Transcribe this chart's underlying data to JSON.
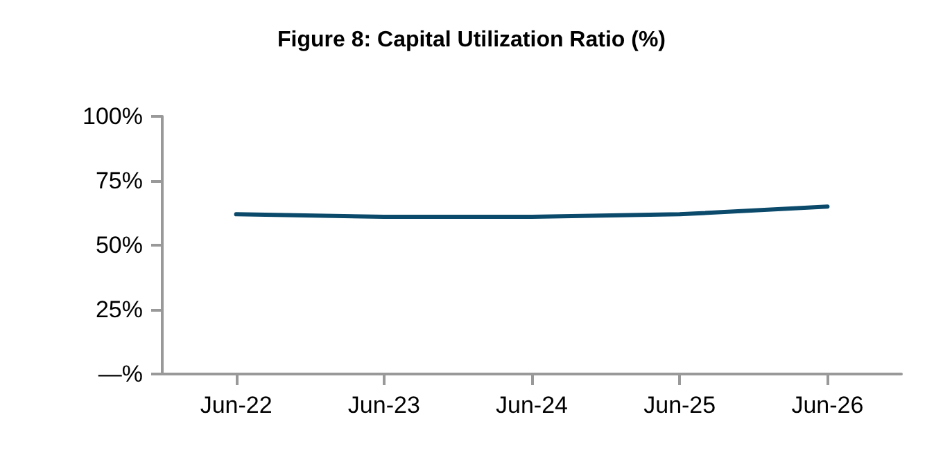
{
  "chart_data": {
    "type": "line",
    "title": "Figure 8: Capital Utilization Ratio (%)",
    "categories": [
      "Jun-22",
      "Jun-23",
      "Jun-24",
      "Jun-25",
      "Jun-26"
    ],
    "series": [
      {
        "color": "#0b4a6b",
        "values": [
          62,
          61,
          61,
          62,
          65
        ]
      }
    ],
    "ylim": [
      0,
      100
    ],
    "yticks": [
      {
        "value": 0,
        "label": "—%"
      },
      {
        "value": 25,
        "label": "25%"
      },
      {
        "value": 50,
        "label": "50%"
      },
      {
        "value": 75,
        "label": "75%"
      },
      {
        "value": 100,
        "label": "100%"
      }
    ],
    "grid": false,
    "marker": "none",
    "line_style": "solid"
  }
}
